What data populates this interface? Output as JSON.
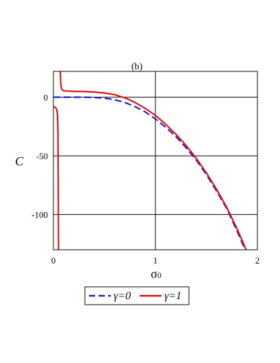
{
  "chart_data": {
    "type": "line",
    "title": "(b)",
    "xlabel": "σ",
    "xlabel_subscript": "0",
    "ylabel": "C",
    "xlim": [
      0,
      2
    ],
    "ylim": [
      -130,
      22
    ],
    "grid": true,
    "legend_position": "bottom",
    "x_ticks": [
      "0",
      "1",
      "2"
    ],
    "y_ticks": [
      "0",
      "-50",
      "-100"
    ],
    "y_tick_values": [
      0,
      -50,
      -100
    ],
    "x_tick_values": [
      0,
      1,
      2
    ],
    "series": [
      {
        "name": "γ=0",
        "color": "#1f1fd0",
        "style": "dashed",
        "x": [
          0.0,
          0.1,
          0.2,
          0.3,
          0.4,
          0.5,
          0.6,
          0.7,
          0.8,
          0.9,
          1.0,
          1.1,
          1.2,
          1.3,
          1.4,
          1.5,
          1.6,
          1.7,
          1.8,
          1.88
        ],
        "y": [
          0,
          0,
          0,
          0,
          -0.2,
          -0.8,
          -2.2,
          -4.5,
          -8,
          -12.5,
          -18.5,
          -25.5,
          -33.5,
          -43,
          -53.5,
          -66,
          -80,
          -95,
          -114,
          -130
        ]
      },
      {
        "name": "γ=1",
        "color": "#e01010",
        "style": "solid",
        "segments": [
          {
            "x": [
              0.0,
              0.01,
              0.02,
              0.03,
              0.035,
              0.04,
              0.045,
              0.05
            ],
            "y": [
              -8,
              -8.3,
              -8.8,
              -10,
              -11.5,
              -15,
              -30,
              -130
            ]
          },
          {
            "x": [
              0.068,
              0.072,
              0.078,
              0.085,
              0.1,
              0.13,
              0.2,
              0.3,
              0.4,
              0.5,
              0.6,
              0.7,
              0.8,
              0.9,
              1.0,
              1.1,
              1.2,
              1.3,
              1.4,
              1.5,
              1.6,
              1.7,
              1.8,
              1.89
            ],
            "y": [
              22,
              12,
              8,
              6.5,
              5.5,
              5.2,
              5,
              4.8,
              4.4,
              3.6,
              2.2,
              -0.5,
              -4.5,
              -9.5,
              -15.5,
              -23,
              -31.5,
              -41,
              -52,
              -64.5,
              -78.5,
              -94,
              -112,
              -130
            ]
          }
        ]
      }
    ]
  }
}
